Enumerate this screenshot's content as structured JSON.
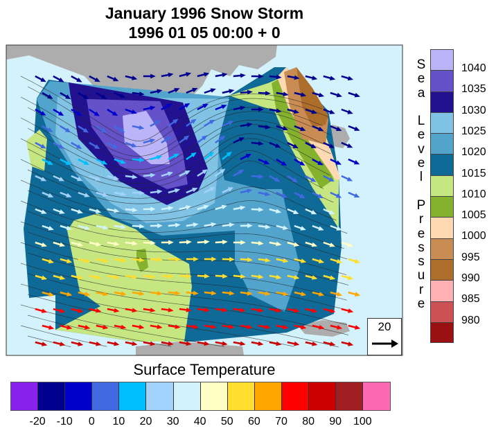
{
  "title": {
    "line1": "January 1996 Snow Storm",
    "line2": "1996 01 05 00:00 + 0"
  },
  "slp_legend": {
    "title": "Sea Level Pressure",
    "title_letters": [
      "S",
      "e",
      "a",
      "",
      "L",
      "e",
      "v",
      "e",
      "l",
      "",
      "P",
      "r",
      "e",
      "s",
      "s",
      "u",
      "r",
      "e"
    ],
    "labels": [
      "1040",
      "1035",
      "1030",
      "1025",
      "1020",
      "1015",
      "1010",
      "1005",
      "1000",
      "995",
      "990",
      "985",
      "980"
    ],
    "colors": [
      "#bcb4f8",
      "#6552c9",
      "#22128f",
      "#80c3e4",
      "#53a4cd",
      "#0f6a97",
      "#c6e682",
      "#85b22e",
      "#fed9b1",
      "#c98d53",
      "#ad6d2b",
      "#ffb1b3",
      "#cc5254",
      "#9a1114"
    ]
  },
  "temp_legend": {
    "title": "Surface Temperature",
    "labels": [
      "-20",
      "-10",
      "0",
      "10",
      "20",
      "30",
      "40",
      "50",
      "60",
      "70",
      "80",
      "90",
      "100"
    ],
    "colors": [
      "#8a22ee",
      "#00008f",
      "#0000cd",
      "#4169e1",
      "#00bfff",
      "#a2d3fd",
      "#d1f3fc",
      "#ffffc6",
      "#ffde2f",
      "#ffa600",
      "#ff0000",
      "#cd0000",
      "#a01f22",
      "#ff68b4"
    ]
  },
  "reference_vector": {
    "magnitude": "20"
  },
  "map_colors": {
    "ocean": "#d4f2fb",
    "land": "#adadad"
  }
}
